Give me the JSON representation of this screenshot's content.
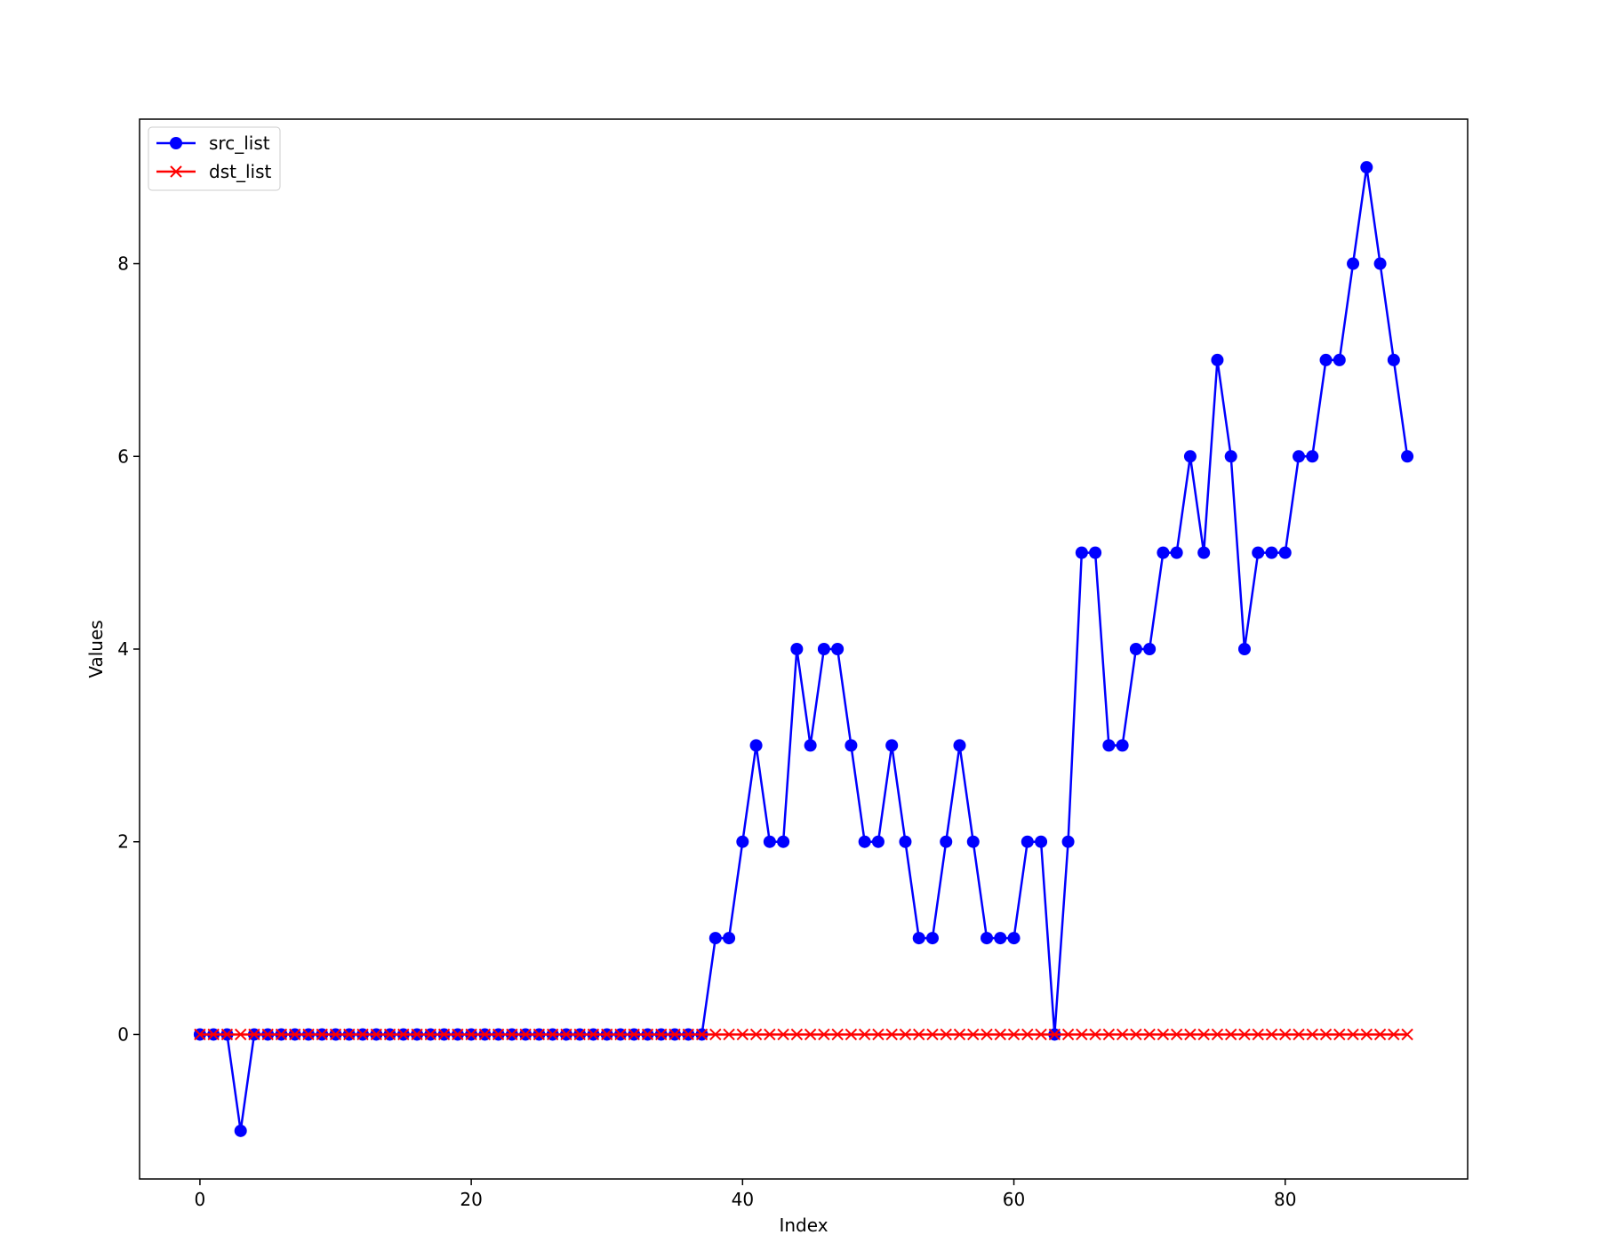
{
  "chart_data": {
    "type": "line",
    "xlabel": "Index",
    "ylabel": "Values",
    "xlim": [
      -4.45,
      93.45
    ],
    "ylim": [
      -1.5,
      9.5
    ],
    "xticks": [
      0,
      20,
      40,
      60,
      80
    ],
    "yticks": [
      0,
      2,
      4,
      6,
      8
    ],
    "legend_position": "upper-left",
    "grid": false,
    "series": [
      {
        "name": "src_list",
        "color": "#0000ff",
        "marker": "circle",
        "x": [
          0,
          1,
          2,
          3,
          4,
          5,
          6,
          7,
          8,
          9,
          10,
          11,
          12,
          13,
          14,
          15,
          16,
          17,
          18,
          19,
          20,
          21,
          22,
          23,
          24,
          25,
          26,
          27,
          28,
          29,
          30,
          31,
          32,
          33,
          34,
          35,
          36,
          37,
          38,
          39,
          40,
          41,
          42,
          43,
          44,
          45,
          46,
          47,
          48,
          49,
          50,
          51,
          52,
          53,
          54,
          55,
          56,
          57,
          58,
          59,
          60,
          61,
          62,
          63,
          64,
          65,
          66,
          67,
          68,
          69,
          70,
          71,
          72,
          73,
          74,
          75,
          76,
          77,
          78,
          79,
          80,
          81,
          82,
          83,
          84,
          85,
          86,
          87,
          88,
          89
        ],
        "values": [
          0,
          0,
          0,
          -1,
          0,
          0,
          0,
          0,
          0,
          0,
          0,
          0,
          0,
          0,
          0,
          0,
          0,
          0,
          0,
          0,
          0,
          0,
          0,
          0,
          0,
          0,
          0,
          0,
          0,
          0,
          0,
          0,
          0,
          0,
          0,
          0,
          0,
          0,
          1,
          1,
          2,
          3,
          2,
          2,
          4,
          3,
          4,
          4,
          3,
          2,
          2,
          3,
          2,
          1,
          1,
          2,
          3,
          2,
          1,
          1,
          1,
          2,
          2,
          0,
          2,
          5,
          5,
          3,
          3,
          4,
          4,
          5,
          5,
          6,
          5,
          7,
          6,
          4,
          5,
          5,
          5,
          6,
          6,
          7,
          7,
          8,
          9,
          8,
          7,
          6
        ]
      },
      {
        "name": "dst_list",
        "color": "#ff0000",
        "marker": "x",
        "x": [
          0,
          1,
          2,
          3,
          4,
          5,
          6,
          7,
          8,
          9,
          10,
          11,
          12,
          13,
          14,
          15,
          16,
          17,
          18,
          19,
          20,
          21,
          22,
          23,
          24,
          25,
          26,
          27,
          28,
          29,
          30,
          31,
          32,
          33,
          34,
          35,
          36,
          37,
          38,
          39,
          40,
          41,
          42,
          43,
          44,
          45,
          46,
          47,
          48,
          49,
          50,
          51,
          52,
          53,
          54,
          55,
          56,
          57,
          58,
          59,
          60,
          61,
          62,
          63,
          64,
          65,
          66,
          67,
          68,
          69,
          70,
          71,
          72,
          73,
          74,
          75,
          76,
          77,
          78,
          79,
          80,
          81,
          82,
          83,
          84,
          85,
          86,
          87,
          88,
          89
        ],
        "values": [
          0,
          0,
          0,
          0,
          0,
          0,
          0,
          0,
          0,
          0,
          0,
          0,
          0,
          0,
          0,
          0,
          0,
          0,
          0,
          0,
          0,
          0,
          0,
          0,
          0,
          0,
          0,
          0,
          0,
          0,
          0,
          0,
          0,
          0,
          0,
          0,
          0,
          0,
          0,
          0,
          0,
          0,
          0,
          0,
          0,
          0,
          0,
          0,
          0,
          0,
          0,
          0,
          0,
          0,
          0,
          0,
          0,
          0,
          0,
          0,
          0,
          0,
          0,
          0,
          0,
          0,
          0,
          0,
          0,
          0,
          0,
          0,
          0,
          0,
          0,
          0,
          0,
          0,
          0,
          0,
          0,
          0,
          0,
          0,
          0,
          0,
          0,
          0,
          0,
          0
        ]
      }
    ]
  }
}
